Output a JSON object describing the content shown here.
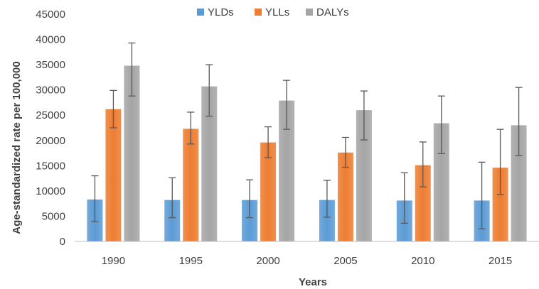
{
  "chart_data": {
    "type": "bar",
    "categories": [
      "1990",
      "1995",
      "2000",
      "2005",
      "2010",
      "2015"
    ],
    "series": [
      {
        "name": "YLDs",
        "values": [
          8300,
          8200,
          8200,
          8200,
          8100,
          8100
        ],
        "error_low": [
          3900,
          4700,
          4700,
          4800,
          3600,
          2500
        ],
        "error_high": [
          13000,
          12600,
          12200,
          12100,
          13600,
          15700
        ]
      },
      {
        "name": "YLLs",
        "values": [
          26200,
          22300,
          19600,
          17600,
          15100,
          14600
        ],
        "error_low": [
          22500,
          19300,
          16600,
          14700,
          10800,
          9300
        ],
        "error_high": [
          29900,
          25600,
          22700,
          20600,
          19700,
          22200
        ]
      },
      {
        "name": "DALYs",
        "values": [
          34800,
          30700,
          27900,
          26000,
          23400,
          23000
        ],
        "error_low": [
          28800,
          24800,
          22200,
          20100,
          17400,
          17000
        ],
        "error_high": [
          39300,
          35000,
          31900,
          29800,
          28800,
          30500
        ]
      }
    ],
    "colors": {
      "YLDs": "#5b9bd5",
      "YLLs": "#ed7d31",
      "DALYs": "#a5a5a5",
      "error_bar": "#595959",
      "axis_line": "#bfbfbf",
      "text": "#404040"
    },
    "xlabel": "Years",
    "ylabel": "Age-standardized rate per 100,000",
    "ylim": [
      0,
      45000
    ],
    "yticks": [
      "0",
      "5000",
      "10000",
      "15000",
      "20000",
      "25000",
      "30000",
      "35000",
      "40000",
      "45000"
    ],
    "grid": false,
    "legend_position": "top-center"
  }
}
